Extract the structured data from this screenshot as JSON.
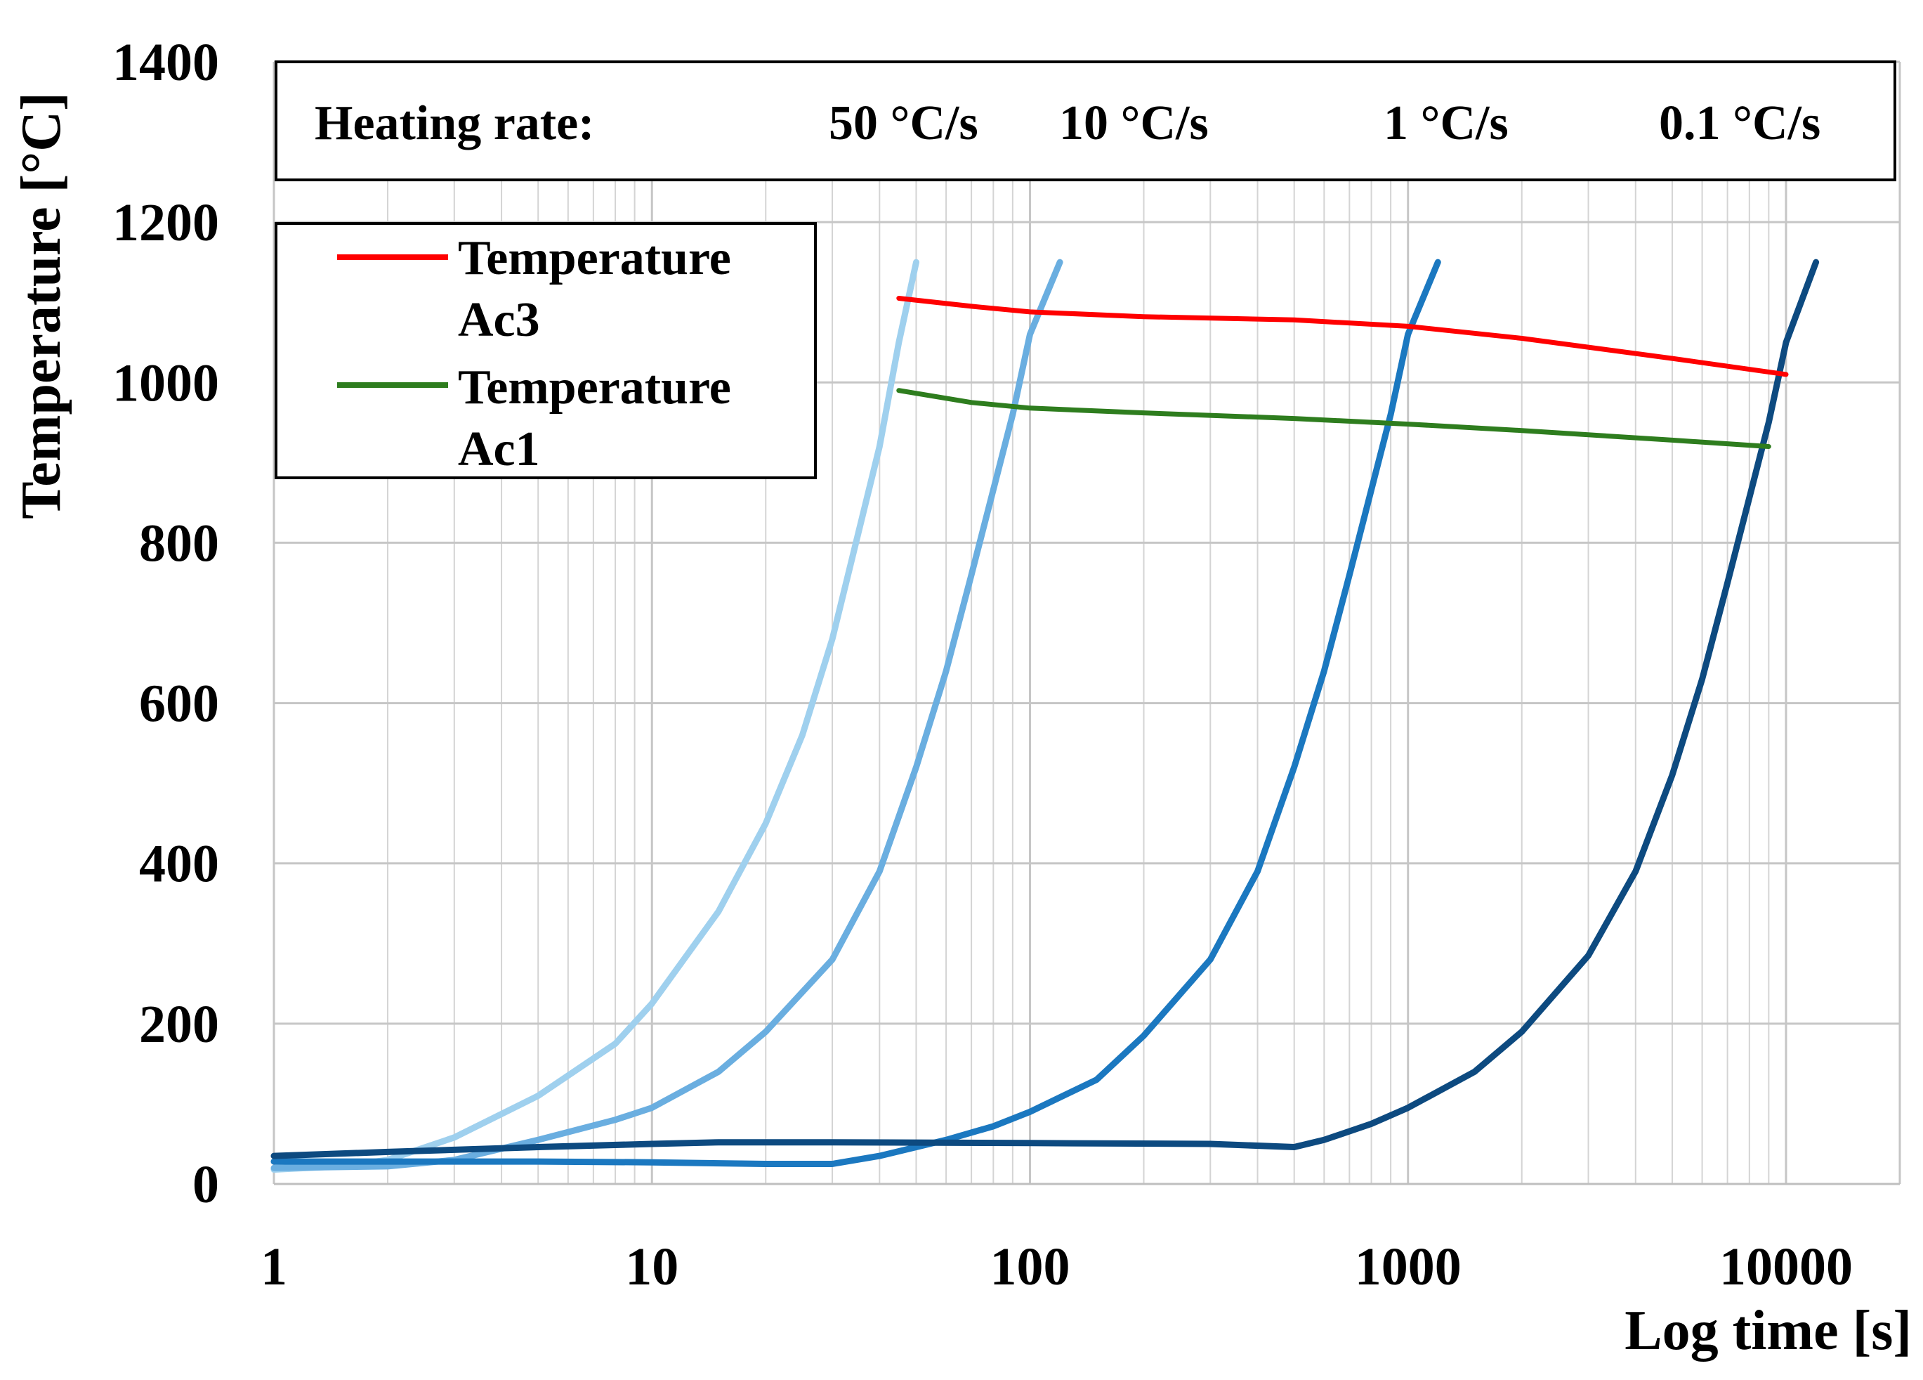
{
  "chart_data": {
    "type": "line",
    "title": "",
    "xlabel": "Log time [s]",
    "ylabel": "Temperature [°C]",
    "xscale": "log",
    "xlim": [
      1,
      20000
    ],
    "ylim": [
      0,
      1400
    ],
    "grid": true,
    "x_tick_labels": [
      "1",
      "10",
      "100",
      "1000",
      "10000"
    ],
    "y_tick_labels": [
      "0",
      "200",
      "400",
      "600",
      "800",
      "1000",
      "1200",
      "1400"
    ],
    "banner": {
      "label": "Heating rate:",
      "rates": [
        "50 °C/s",
        "10 °C/s",
        "1 °C/s",
        "0.1 °C/s"
      ]
    },
    "legend": {
      "position": "top-left",
      "entries": [
        {
          "name_line1": "Temperature",
          "name_line2": "Ac3",
          "color": "#ff0000"
        },
        {
          "name_line1": "Temperature",
          "name_line2": "Ac1",
          "color": "#2e7d1e"
        }
      ]
    },
    "series": [
      {
        "name": "50 °C/s",
        "color": "#9fd0ee",
        "points": [
          [
            1,
            18
          ],
          [
            1.5,
            22
          ],
          [
            2,
            30
          ],
          [
            3,
            58
          ],
          [
            5,
            110
          ],
          [
            8,
            175
          ],
          [
            10,
            225
          ],
          [
            15,
            340
          ],
          [
            20,
            450
          ],
          [
            25,
            560
          ],
          [
            30,
            680
          ],
          [
            40,
            920
          ],
          [
            45,
            1050
          ],
          [
            50,
            1150
          ]
        ]
      },
      {
        "name": "10 °C/s",
        "color": "#6aaee0",
        "points": [
          [
            1,
            20
          ],
          [
            2,
            22
          ],
          [
            3,
            30
          ],
          [
            5,
            55
          ],
          [
            8,
            80
          ],
          [
            10,
            95
          ],
          [
            15,
            140
          ],
          [
            20,
            190
          ],
          [
            30,
            280
          ],
          [
            40,
            390
          ],
          [
            50,
            520
          ],
          [
            60,
            640
          ],
          [
            70,
            760
          ],
          [
            90,
            960
          ],
          [
            100,
            1060
          ],
          [
            120,
            1150
          ]
        ]
      },
      {
        "name": "1 °C/s",
        "color": "#1b78c0",
        "points": [
          [
            1,
            28
          ],
          [
            5,
            28
          ],
          [
            10,
            27
          ],
          [
            20,
            25
          ],
          [
            30,
            25
          ],
          [
            40,
            35
          ],
          [
            60,
            55
          ],
          [
            80,
            72
          ],
          [
            100,
            90
          ],
          [
            150,
            130
          ],
          [
            200,
            185
          ],
          [
            300,
            280
          ],
          [
            400,
            390
          ],
          [
            500,
            520
          ],
          [
            600,
            640
          ],
          [
            700,
            760
          ],
          [
            900,
            960
          ],
          [
            1000,
            1060
          ],
          [
            1200,
            1150
          ]
        ]
      },
      {
        "name": "0.1 °C/s",
        "color": "#0d4a80",
        "points": [
          [
            1,
            35
          ],
          [
            2,
            40
          ],
          [
            5,
            46
          ],
          [
            10,
            50
          ],
          [
            15,
            52
          ],
          [
            30,
            52
          ],
          [
            100,
            51
          ],
          [
            300,
            50
          ],
          [
            500,
            46
          ],
          [
            600,
            55
          ],
          [
            800,
            75
          ],
          [
            1000,
            95
          ],
          [
            1500,
            140
          ],
          [
            2000,
            190
          ],
          [
            3000,
            285
          ],
          [
            4000,
            390
          ],
          [
            5000,
            510
          ],
          [
            6000,
            630
          ],
          [
            7000,
            750
          ],
          [
            9000,
            950
          ],
          [
            10000,
            1050
          ],
          [
            12000,
            1150
          ]
        ]
      },
      {
        "name": "Temperature Ac3",
        "color": "#ff0000",
        "points": [
          [
            45,
            1105
          ],
          [
            70,
            1095
          ],
          [
            100,
            1088
          ],
          [
            200,
            1082
          ],
          [
            500,
            1078
          ],
          [
            1000,
            1070
          ],
          [
            2000,
            1055
          ],
          [
            5000,
            1030
          ],
          [
            10000,
            1010
          ]
        ]
      },
      {
        "name": "Temperature Ac1",
        "color": "#2e7d1e",
        "points": [
          [
            45,
            990
          ],
          [
            70,
            975
          ],
          [
            100,
            968
          ],
          [
            200,
            962
          ],
          [
            500,
            955
          ],
          [
            1000,
            948
          ],
          [
            2000,
            940
          ],
          [
            5000,
            928
          ],
          [
            9000,
            920
          ]
        ]
      }
    ]
  }
}
